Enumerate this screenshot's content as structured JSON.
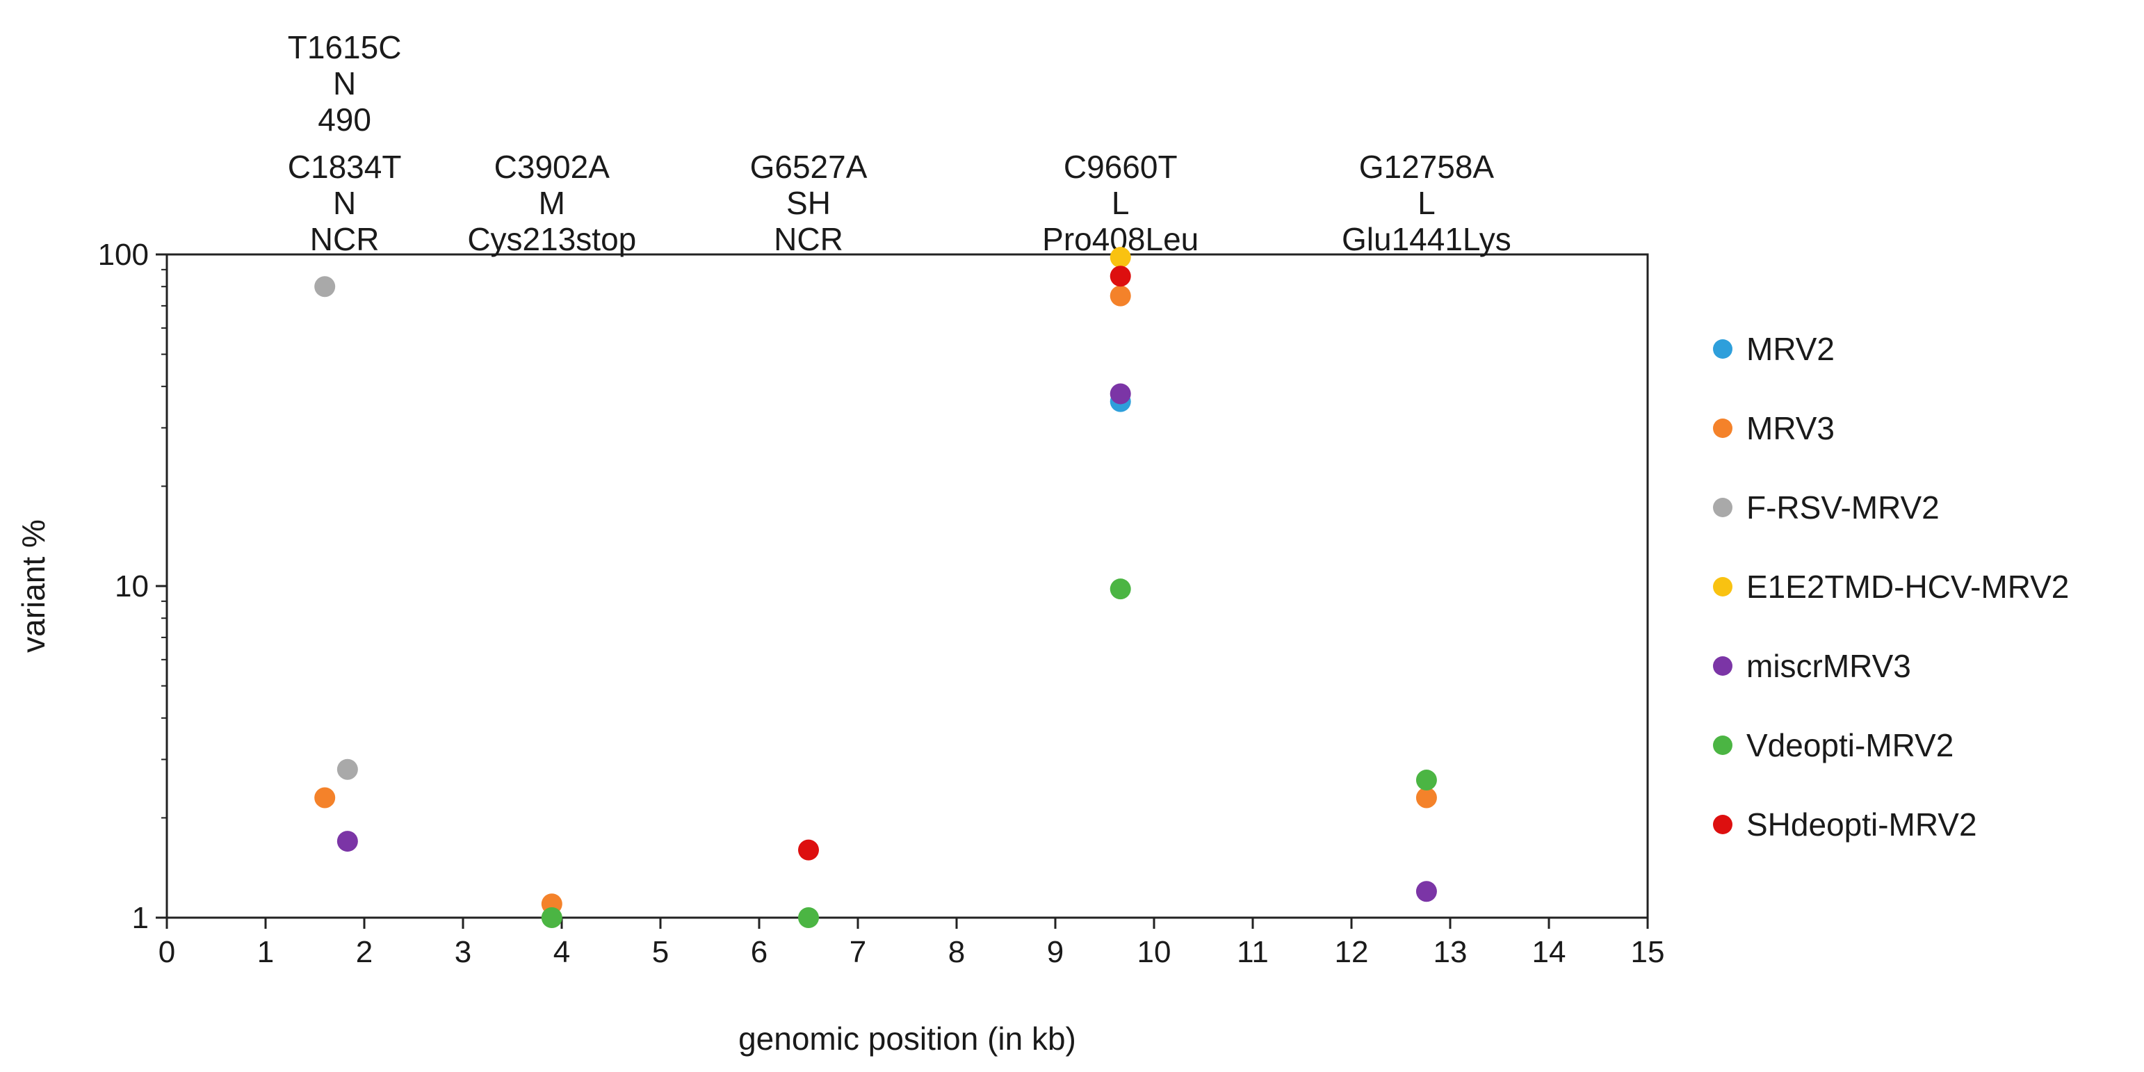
{
  "chart_data": {
    "type": "scatter",
    "xlabel": "genomic position (in kb)",
    "ylabel": "variant %",
    "xlim": [
      0,
      15
    ],
    "ylim": [
      1,
      100
    ],
    "y_scale": "log",
    "x_ticks": [
      "0",
      "1",
      "2",
      "3",
      "4",
      "5",
      "6",
      "7",
      "8",
      "9",
      "10",
      "11",
      "12",
      "13",
      "14",
      "15"
    ],
    "y_ticks": [
      {
        "value": 1,
        "label": "1"
      },
      {
        "value": 10,
        "label": "10"
      },
      {
        "value": 100,
        "label": "100"
      }
    ],
    "grid": false,
    "legend_position": "right",
    "annotations": [
      {
        "x": 1.6,
        "lines": [
          "T1615C",
          "N",
          "490"
        ]
      },
      {
        "x": 1.8,
        "lines": [
          "C1834T",
          "N",
          "NCR"
        ]
      },
      {
        "x": 3.9,
        "lines": [
          "C3902A",
          "M",
          "Cys213stop"
        ]
      },
      {
        "x": 6.5,
        "lines": [
          "G6527A",
          "SH",
          "NCR"
        ]
      },
      {
        "x": 9.66,
        "lines": [
          "C9660T",
          "L",
          "Pro408Leu"
        ]
      },
      {
        "x": 12.76,
        "lines": [
          "G12758A",
          "L",
          "Glu1441Lys"
        ]
      }
    ],
    "series": [
      {
        "name": "MRV2",
        "color": "#2e9fdb",
        "points": [
          {
            "x": 9.66,
            "y": 36
          }
        ]
      },
      {
        "name": "MRV3",
        "color": "#f4822a",
        "points": [
          {
            "x": 1.6,
            "y": 2.3
          },
          {
            "x": 3.9,
            "y": 1.1
          },
          {
            "x": 9.66,
            "y": 75
          },
          {
            "x": 12.76,
            "y": 2.3
          }
        ]
      },
      {
        "name": "F-RSV-MRV2",
        "color": "#a9a9a9",
        "points": [
          {
            "x": 1.6,
            "y": 80
          },
          {
            "x": 1.83,
            "y": 2.8
          }
        ]
      },
      {
        "name": "E1E2TMD-HCV-MRV2",
        "color": "#f9c211",
        "points": [
          {
            "x": 9.66,
            "y": 98
          }
        ]
      },
      {
        "name": "miscrMRV3",
        "color": "#7b35a6",
        "points": [
          {
            "x": 1.83,
            "y": 1.7
          },
          {
            "x": 9.66,
            "y": 38
          },
          {
            "x": 12.76,
            "y": 1.2
          }
        ]
      },
      {
        "name": "Vdeopti-MRV2",
        "color": "#4bb543",
        "points": [
          {
            "x": 3.9,
            "y": 1.0
          },
          {
            "x": 6.5,
            "y": 1.0
          },
          {
            "x": 9.66,
            "y": 9.8
          },
          {
            "x": 12.76,
            "y": 2.6
          }
        ]
      },
      {
        "name": "SHdeopti-MRV2",
        "color": "#dd0f0f",
        "points": [
          {
            "x": 6.5,
            "y": 1.6
          },
          {
            "x": 9.66,
            "y": 86
          }
        ]
      }
    ]
  }
}
